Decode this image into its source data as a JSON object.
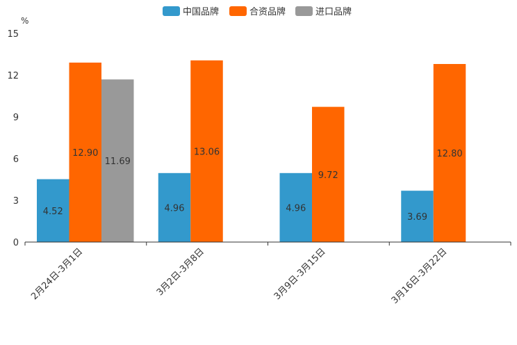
{
  "chart_data": {
    "type": "bar",
    "ylabel": "%",
    "ylim": [
      0,
      15
    ],
    "yticks": [
      "0",
      "3",
      "6",
      "9",
      "12",
      "15"
    ],
    "categories": [
      "2月24日-3月1日",
      "3月2日-3月8日",
      "3月9日-3月15日",
      "3月16日-3月22日"
    ],
    "series": [
      {
        "name": "中国品牌",
        "color": "#3399CC",
        "values": [
          4.52,
          4.96,
          4.96,
          3.69
        ],
        "labels": [
          "4.52",
          "4.96",
          "4.96",
          "3.69"
        ]
      },
      {
        "name": "合资品牌",
        "color": "#FF6600",
        "values": [
          12.9,
          13.06,
          9.72,
          12.8
        ],
        "labels": [
          "12.90",
          "13.06",
          "9.72",
          "12.80"
        ]
      },
      {
        "name": "进口品牌",
        "color": "#999999",
        "values": [
          11.69,
          null,
          null,
          null
        ],
        "labels": [
          "11.69",
          null,
          null,
          null
        ]
      }
    ],
    "legend_position": "top-center",
    "grid": false
  }
}
